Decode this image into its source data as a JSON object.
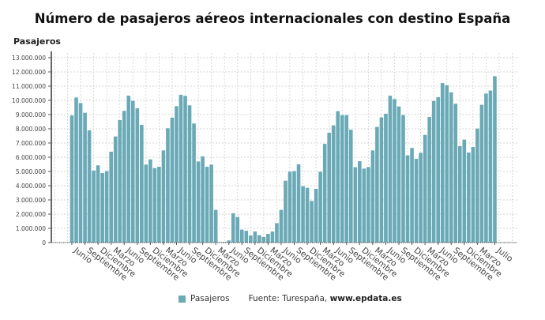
{
  "chart_data": {
    "type": "bar",
    "title": "Número de pasajeros aéreos internacionales con destino España",
    "ylabel": "Pasajeros",
    "xlabel": "",
    "ylim": [
      0,
      13000000
    ],
    "y_ticks": [
      "0",
      "1.000.000",
      "2.000.000",
      "3.000.000",
      "4.000.000",
      "5.000.000",
      "6.000.000",
      "7.000.000",
      "8.000.000",
      "9.000.000",
      "10.000.000",
      "11.000.000",
      "12.000.000",
      "13.000.000"
    ],
    "grid": true,
    "legend_placement": "bottom",
    "color": "#6aa9b6",
    "categories": [
      "Junio",
      "",
      "",
      "Septiembre",
      "",
      "",
      "Diciembre",
      "",
      "",
      "Marzo",
      "",
      "",
      "Junio",
      "",
      "",
      "Septiembre",
      "",
      "",
      "Diciembre",
      "",
      "",
      "Marzo",
      "",
      "",
      "Junio",
      "",
      "",
      "Septiembre",
      "",
      "",
      "Diciembre",
      "",
      "",
      "Marzo",
      "",
      "",
      "Junio",
      "",
      "",
      "Septiembre",
      "",
      "",
      "Diciembre",
      "",
      "",
      "Marzo",
      "",
      "",
      "Junio",
      "",
      "",
      "Septiembre",
      "",
      "",
      "Diciembre",
      "",
      "",
      "Marzo",
      "",
      "",
      "Junio",
      "",
      "",
      "Septiembre",
      "",
      "",
      "Diciembre",
      "",
      "",
      "Marzo",
      "",
      "",
      "Junio",
      "",
      "",
      "Septiembre",
      "",
      "",
      "Diciembre",
      "",
      "",
      "Marzo",
      "",
      "",
      "Junio",
      "",
      "",
      "Septiembre",
      "",
      "",
      "Diciembre",
      "",
      "",
      "Marzo",
      "",
      "",
      "",
      "Julio"
    ],
    "series": [
      {
        "name": "Pasajeros",
        "values": [
          8940000,
          10200000,
          9810000,
          9130000,
          7890000,
          5060000,
          5430000,
          4890000,
          5020000,
          6390000,
          7460000,
          8610000,
          9260000,
          10330000,
          9960000,
          9440000,
          8280000,
          5480000,
          5850000,
          5240000,
          5330000,
          6480000,
          8040000,
          8780000,
          9590000,
          10390000,
          10310000,
          9650000,
          8370000,
          5700000,
          6060000,
          5330000,
          5480000,
          2300000,
          20000,
          50000,
          150000,
          2060000,
          1800000,
          910000,
          830000,
          500000,
          780000,
          520000,
          390000,
          610000,
          780000,
          1370000,
          2300000,
          4350000,
          4980000,
          5020000,
          5500000,
          3960000,
          3850000,
          2930000,
          3780000,
          4980000,
          6940000,
          7720000,
          8240000,
          9240000,
          8960000,
          8960000,
          7930000,
          5300000,
          5720000,
          5200000,
          5310000,
          6480000,
          8130000,
          8800000,
          9060000,
          10330000,
          10090000,
          9570000,
          8960000,
          6130000,
          6650000,
          5890000,
          6310000,
          7570000,
          8830000,
          9960000,
          10220000,
          11220000,
          11060000,
          10560000,
          9760000,
          6780000,
          7240000,
          6330000,
          6720000,
          8020000,
          9690000,
          10480000,
          10690000,
          11700000
        ]
      }
    ],
    "source_prefix": "Fuente: Turespaña, ",
    "source_site": "www.epdata.es"
  }
}
